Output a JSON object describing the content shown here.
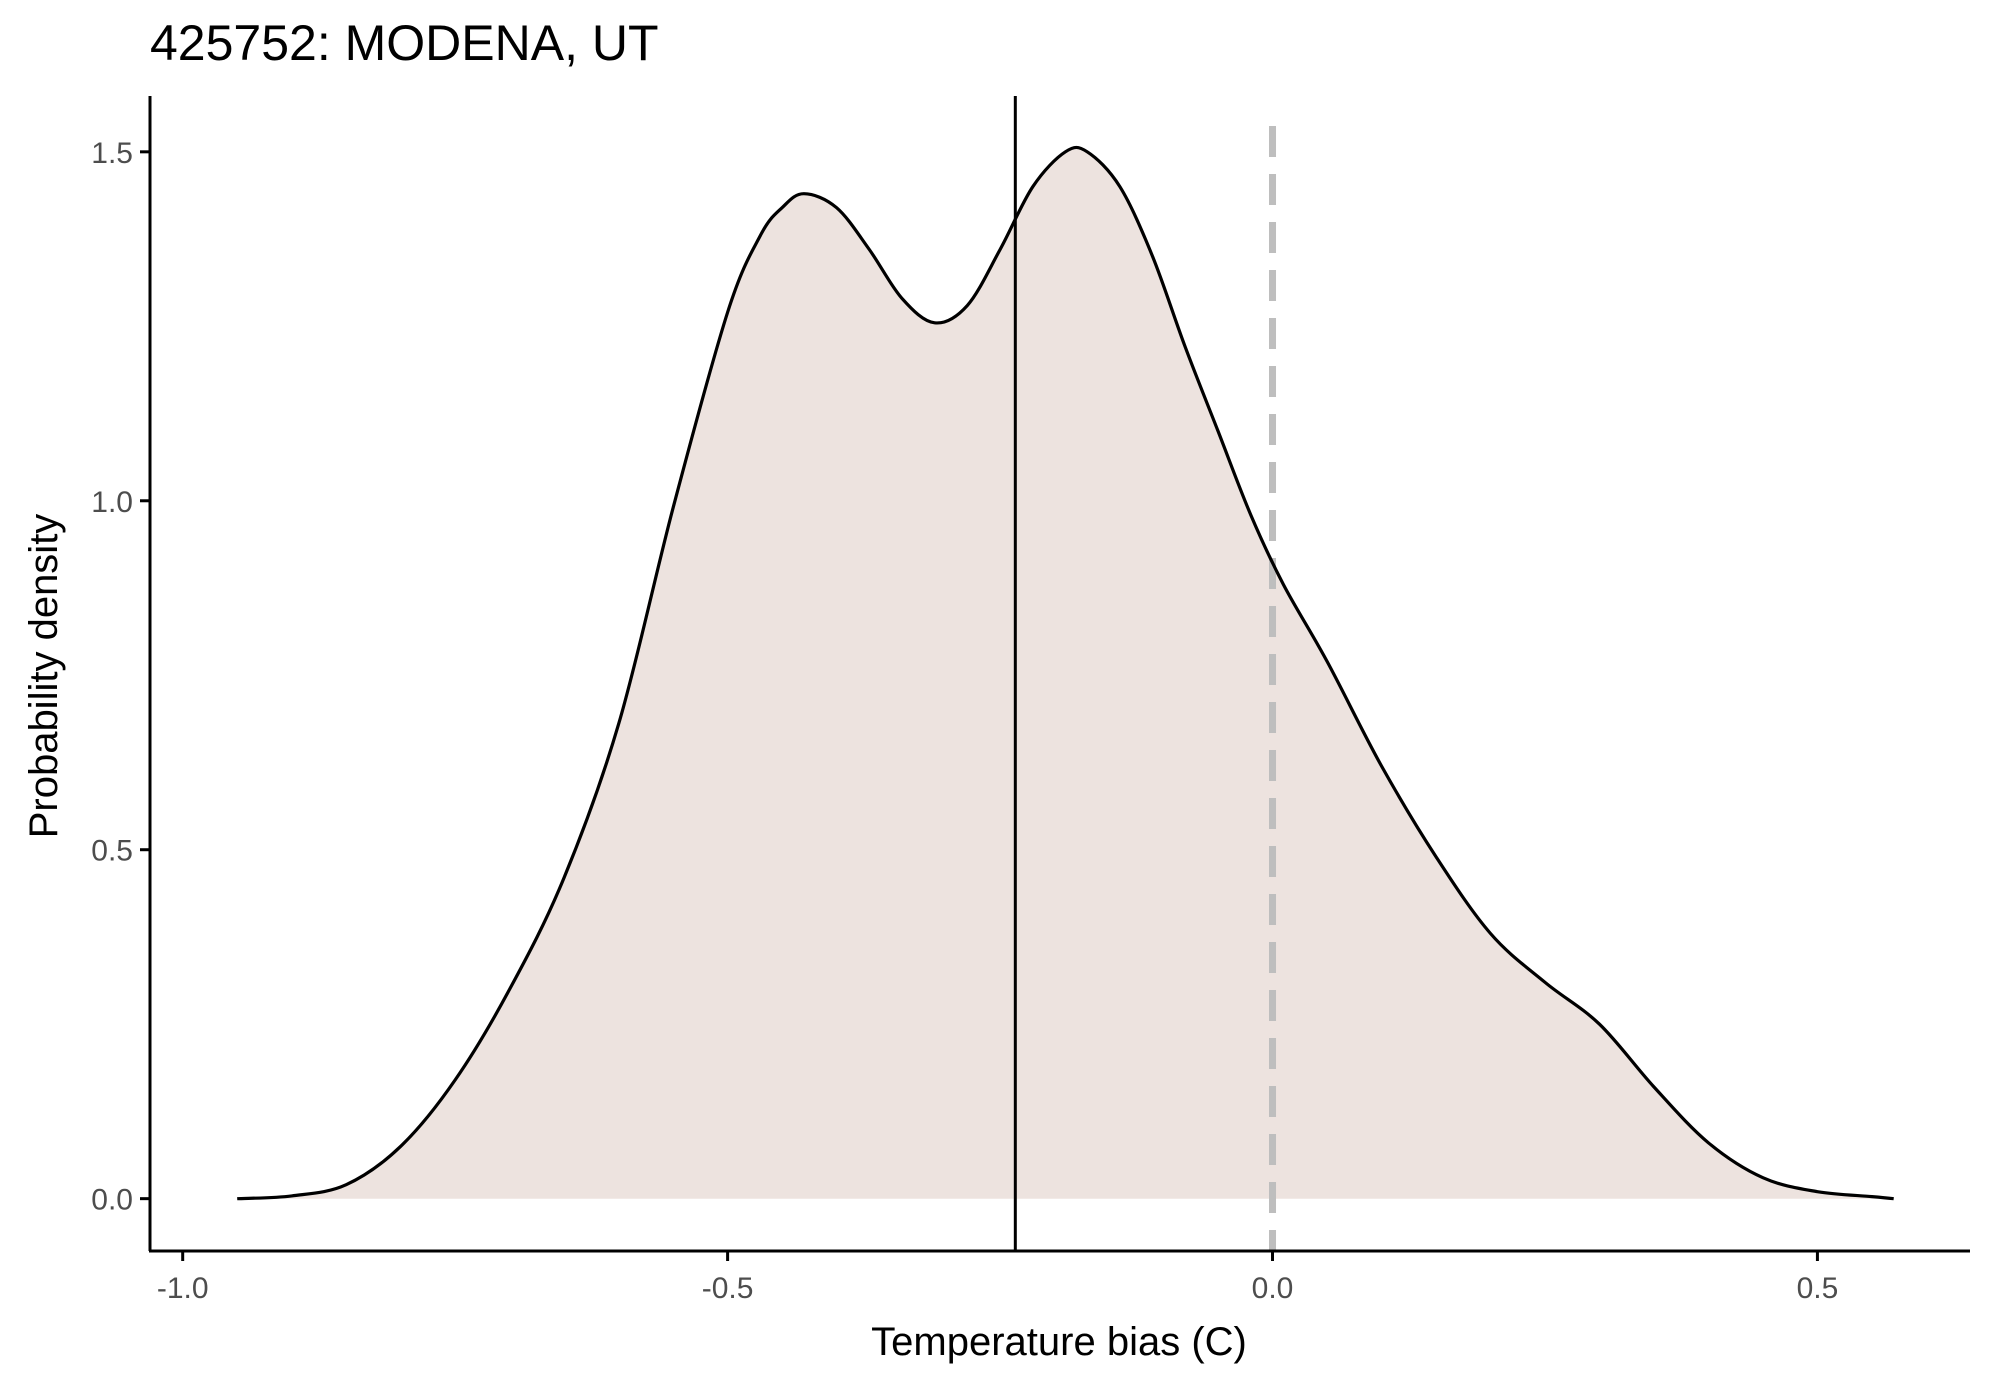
{
  "chart_data": {
    "type": "area",
    "title": "425752: MODENA, UT",
    "xlabel": "Temperature bias (C)",
    "ylabel": "Probability density",
    "xlim": [
      -1.03,
      0.64
    ],
    "ylim": [
      -0.075,
      1.58
    ],
    "x_ticks": [
      -1.0,
      -0.5,
      0.0,
      0.5
    ],
    "x_tick_labels": [
      "-1.0",
      "-0.5",
      "0.0",
      "0.5"
    ],
    "y_ticks": [
      0.0,
      0.5,
      1.0,
      1.5
    ],
    "y_tick_labels": [
      "0.0",
      "0.5",
      "1.0",
      "1.5"
    ],
    "grid": false,
    "legend": "none",
    "fill_color": "#ede3df",
    "line_color": "#000000",
    "reference_lines": [
      {
        "x": -0.236,
        "style": "solid",
        "color": "#000000"
      },
      {
        "x": 0.0,
        "style": "dashed",
        "color": "#bebebe"
      }
    ],
    "series": [
      {
        "x": [
          -0.95,
          -0.9,
          -0.85,
          -0.8,
          -0.75,
          -0.7,
          -0.65,
          -0.6,
          -0.55,
          -0.5,
          -0.47,
          -0.45,
          -0.43,
          -0.4,
          -0.37,
          -0.34,
          -0.31,
          -0.28,
          -0.25,
          -0.22,
          -0.19,
          -0.17,
          -0.14,
          -0.11,
          -0.08,
          -0.05,
          -0.02,
          0.01,
          0.05,
          0.1,
          0.15,
          0.2,
          0.25,
          0.3,
          0.35,
          0.4,
          0.45,
          0.5,
          0.55,
          0.57
        ],
        "y": [
          0.0,
          0.004,
          0.02,
          0.075,
          0.17,
          0.3,
          0.46,
          0.68,
          0.99,
          1.27,
          1.38,
          1.42,
          1.44,
          1.42,
          1.36,
          1.29,
          1.255,
          1.28,
          1.36,
          1.45,
          1.5,
          1.5,
          1.45,
          1.35,
          1.22,
          1.1,
          0.98,
          0.88,
          0.77,
          0.62,
          0.49,
          0.38,
          0.31,
          0.25,
          0.16,
          0.08,
          0.03,
          0.01,
          0.003,
          0.0
        ]
      }
    ]
  }
}
